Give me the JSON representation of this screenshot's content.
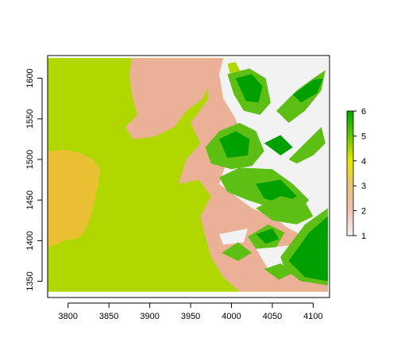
{
  "chart_data": {
    "type": "heatmap",
    "title": "",
    "xlabel": "",
    "ylabel": "",
    "xlim": [
      3775,
      4120
    ],
    "ylim": [
      1330,
      1628
    ],
    "x_ticks": [
      3800,
      3850,
      3900,
      3950,
      4000,
      4050,
      4100
    ],
    "y_ticks": [
      1350,
      1400,
      1450,
      1500,
      1550,
      1600
    ],
    "x_tick_labels": [
      "3800",
      "3850",
      "3900",
      "3950",
      "4000",
      "4050",
      "4100"
    ],
    "y_tick_labels": [
      "1350",
      "1400",
      "1450",
      "1500",
      "1550",
      "1600"
    ],
    "raster_extent": {
      "x": [
        3775,
        4118
      ],
      "y": [
        1337,
        1625
      ]
    },
    "legend": {
      "position": "right",
      "min": 1,
      "max": 6,
      "tick_values": [
        1,
        2,
        3,
        4,
        5,
        6
      ],
      "tick_labels": [
        "1",
        "2",
        "3",
        "4",
        "5",
        "6"
      ],
      "colors": [
        "#f2f2f2",
        "#efc2b3",
        "#eac37a",
        "#e6e600",
        "#63c600",
        "#00a600"
      ]
    },
    "class_colors": {
      "1": "#f2f2f2",
      "2": "#eab196",
      "3": "#e8c032",
      "4": "#b0d800",
      "5": "#5dbe14",
      "6": "#00a000"
    },
    "regions": [
      {
        "value": 4,
        "outline": [
          [
            3775,
            1625
          ],
          [
            4118,
            1625
          ],
          [
            4118,
            1337
          ],
          [
            3775,
            1337
          ]
        ]
      },
      {
        "value": 3,
        "outline": [
          [
            3775,
            1510
          ],
          [
            3795,
            1512
          ],
          [
            3815,
            1508
          ],
          [
            3830,
            1500
          ],
          [
            3840,
            1488
          ],
          [
            3835,
            1460
          ],
          [
            3828,
            1430
          ],
          [
            3820,
            1410
          ],
          [
            3810,
            1402
          ],
          [
            3795,
            1400
          ],
          [
            3785,
            1395
          ],
          [
            3775,
            1392
          ]
        ]
      },
      {
        "value": 2,
        "outline": [
          [
            3878,
            1625
          ],
          [
            3955,
            1625
          ],
          [
            3975,
            1600
          ],
          [
            3965,
            1575
          ],
          [
            3945,
            1560
          ],
          [
            3930,
            1540
          ],
          [
            3905,
            1528
          ],
          [
            3880,
            1525
          ],
          [
            3870,
            1540
          ],
          [
            3885,
            1555
          ],
          [
            3878,
            1580
          ],
          [
            3875,
            1605
          ]
        ]
      },
      {
        "value": 2,
        "outline": [
          [
            3955,
            1625
          ],
          [
            4118,
            1625
          ],
          [
            4118,
            1337
          ],
          [
            4010,
            1337
          ],
          [
            3990,
            1355
          ],
          [
            3975,
            1380
          ],
          [
            3968,
            1405
          ],
          [
            3962,
            1430
          ],
          [
            3975,
            1455
          ],
          [
            3960,
            1475
          ],
          [
            3935,
            1470
          ],
          [
            3945,
            1500
          ],
          [
            3962,
            1520
          ],
          [
            3950,
            1545
          ],
          [
            3972,
            1575
          ],
          [
            3968,
            1602
          ]
        ]
      },
      {
        "value": 1,
        "outline": [
          [
            3990,
            1625
          ],
          [
            4118,
            1625
          ],
          [
            4118,
            1400
          ],
          [
            4090,
            1405
          ],
          [
            4070,
            1415
          ],
          [
            4050,
            1430
          ],
          [
            4025,
            1440
          ],
          [
            4005,
            1455
          ],
          [
            3985,
            1470
          ],
          [
            3995,
            1500
          ],
          [
            4015,
            1520
          ],
          [
            4005,
            1550
          ],
          [
            3990,
            1575
          ],
          [
            3985,
            1605
          ]
        ]
      },
      {
        "value": 1,
        "outline": [
          [
            4030,
            1390
          ],
          [
            4080,
            1395
          ],
          [
            4070,
            1370
          ],
          [
            4045,
            1365
          ]
        ]
      },
      {
        "value": 1,
        "outline": [
          [
            3985,
            1408
          ],
          [
            4020,
            1415
          ],
          [
            4015,
            1398
          ],
          [
            3990,
            1395
          ]
        ]
      },
      {
        "value": 4,
        "outline": [
          [
            3995,
            1618
          ],
          [
            4005,
            1620
          ],
          [
            4012,
            1606
          ],
          [
            4000,
            1600
          ]
        ]
      },
      {
        "value": 5,
        "outline": [
          [
            3995,
            1605
          ],
          [
            4022,
            1612
          ],
          [
            4042,
            1600
          ],
          [
            4048,
            1570
          ],
          [
            4035,
            1555
          ],
          [
            4015,
            1560
          ],
          [
            4003,
            1580
          ]
        ]
      },
      {
        "value": 6,
        "outline": [
          [
            4005,
            1600
          ],
          [
            4025,
            1605
          ],
          [
            4038,
            1590
          ],
          [
            4033,
            1570
          ],
          [
            4018,
            1572
          ]
        ]
      },
      {
        "value": 5,
        "outline": [
          [
            3968,
            1515
          ],
          [
            3985,
            1535
          ],
          [
            4010,
            1545
          ],
          [
            4030,
            1535
          ],
          [
            4040,
            1510
          ],
          [
            4025,
            1492
          ],
          [
            4000,
            1488
          ],
          [
            3975,
            1495
          ]
        ]
      },
      {
        "value": 6,
        "outline": [
          [
            3985,
            1525
          ],
          [
            4005,
            1535
          ],
          [
            4022,
            1525
          ],
          [
            4020,
            1505
          ],
          [
            3995,
            1502
          ]
        ]
      },
      {
        "value": 5,
        "outline": [
          [
            3985,
            1478
          ],
          [
            4010,
            1490
          ],
          [
            4050,
            1488
          ],
          [
            4075,
            1470
          ],
          [
            4095,
            1450
          ],
          [
            4080,
            1435
          ],
          [
            4050,
            1440
          ],
          [
            4020,
            1450
          ],
          [
            3995,
            1460
          ]
        ]
      },
      {
        "value": 6,
        "outline": [
          [
            4030,
            1470
          ],
          [
            4060,
            1475
          ],
          [
            4080,
            1455
          ],
          [
            4065,
            1445
          ],
          [
            4040,
            1452
          ]
        ]
      },
      {
        "value": 5,
        "outline": [
          [
            4055,
            1560
          ],
          [
            4080,
            1585
          ],
          [
            4100,
            1600
          ],
          [
            4115,
            1610
          ],
          [
            4110,
            1585
          ],
          [
            4090,
            1560
          ],
          [
            4070,
            1545
          ]
        ]
      },
      {
        "value": 6,
        "outline": [
          [
            4075,
            1580
          ],
          [
            4100,
            1598
          ],
          [
            4112,
            1600
          ],
          [
            4105,
            1582
          ],
          [
            4085,
            1570
          ]
        ]
      },
      {
        "value": 5,
        "outline": [
          [
            4070,
            1500
          ],
          [
            4095,
            1525
          ],
          [
            4110,
            1540
          ],
          [
            4115,
            1520
          ],
          [
            4100,
            1505
          ],
          [
            4080,
            1495
          ]
        ]
      },
      {
        "value": 6,
        "outline": [
          [
            4040,
            1520
          ],
          [
            4060,
            1530
          ],
          [
            4075,
            1515
          ],
          [
            4060,
            1505
          ]
        ]
      },
      {
        "value": 5,
        "outline": [
          [
            4030,
            1440
          ],
          [
            4060,
            1455
          ],
          [
            4090,
            1448
          ],
          [
            4100,
            1430
          ],
          [
            4080,
            1420
          ],
          [
            4050,
            1425
          ]
        ]
      },
      {
        "value": 5,
        "outline": [
          [
            4060,
            1380
          ],
          [
            4090,
            1420
          ],
          [
            4118,
            1440
          ],
          [
            4118,
            1345
          ],
          [
            4085,
            1350
          ],
          [
            4065,
            1365
          ]
        ]
      },
      {
        "value": 6,
        "outline": [
          [
            4070,
            1375
          ],
          [
            4095,
            1410
          ],
          [
            4118,
            1430
          ],
          [
            4118,
            1350
          ],
          [
            4090,
            1355
          ]
        ]
      },
      {
        "value": 5,
        "outline": [
          [
            4020,
            1405
          ],
          [
            4045,
            1420
          ],
          [
            4065,
            1410
          ],
          [
            4055,
            1392
          ],
          [
            4030,
            1390
          ]
        ]
      },
      {
        "value": 6,
        "outline": [
          [
            4030,
            1408
          ],
          [
            4050,
            1415
          ],
          [
            4058,
            1402
          ],
          [
            4042,
            1396
          ]
        ]
      },
      {
        "value": 5,
        "outline": [
          [
            3988,
            1385
          ],
          [
            4008,
            1398
          ],
          [
            4025,
            1385
          ],
          [
            4008,
            1375
          ]
        ]
      },
      {
        "value": 5,
        "outline": [
          [
            4040,
            1365
          ],
          [
            4060,
            1372
          ],
          [
            4075,
            1360
          ],
          [
            4058,
            1352
          ]
        ]
      }
    ]
  }
}
